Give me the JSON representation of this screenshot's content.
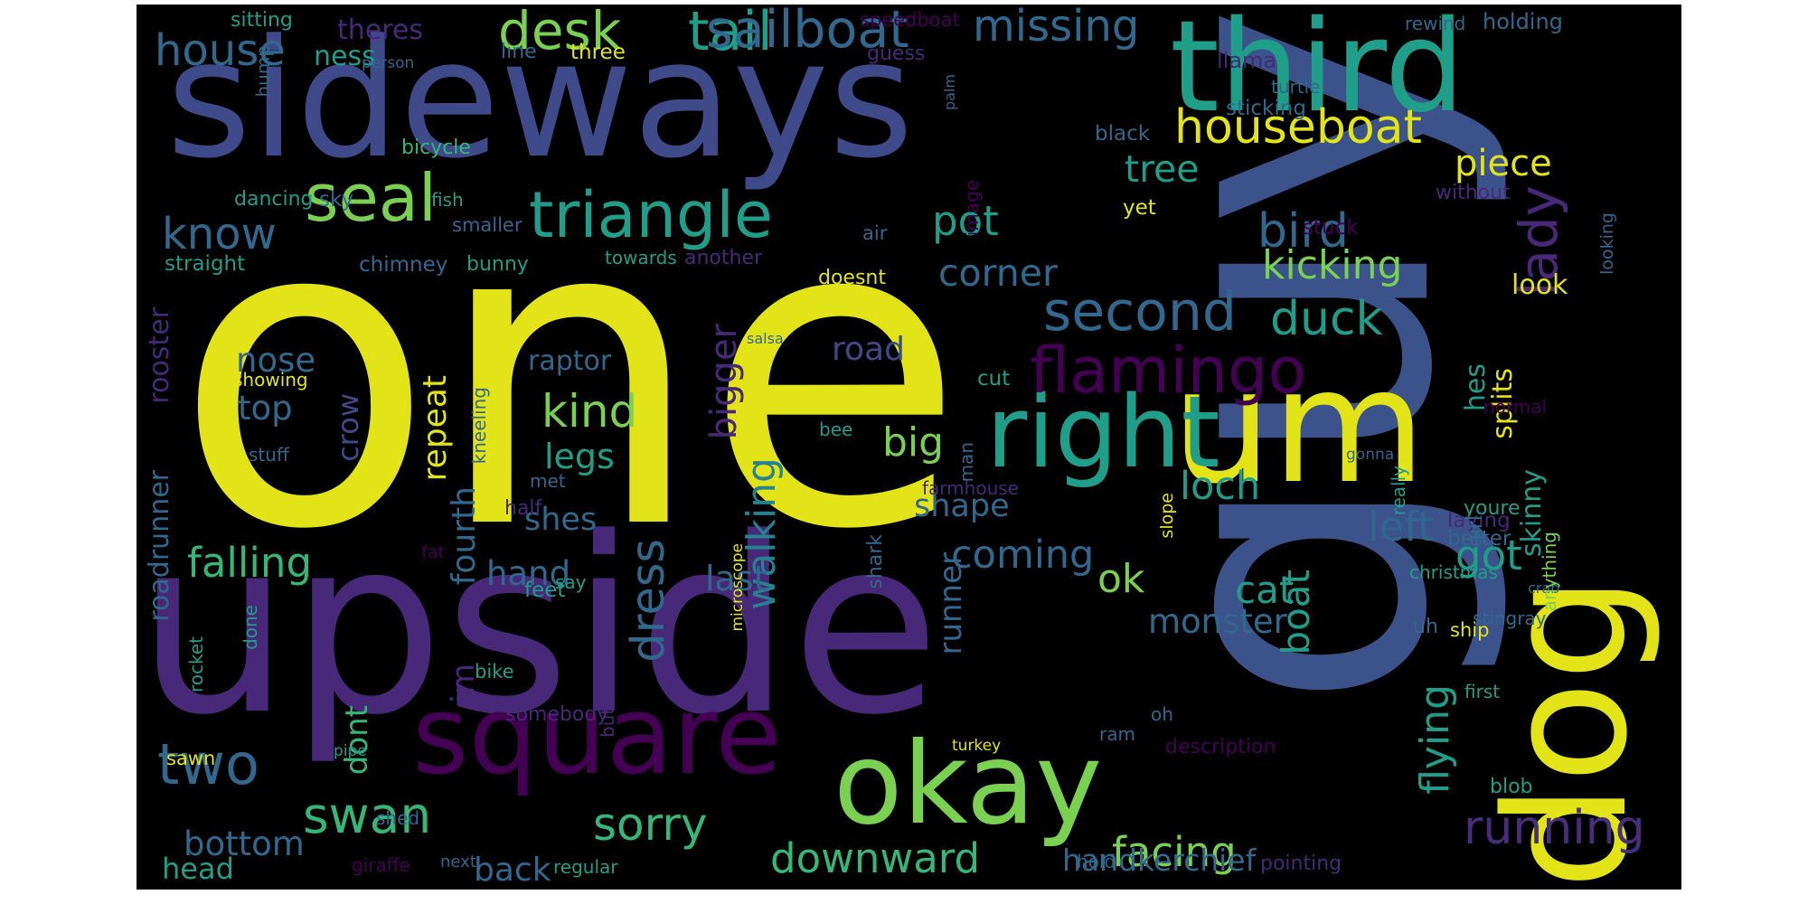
{
  "palette": {
    "yellow": "#e3e418",
    "lime": "#7ad151",
    "green": "#35b779",
    "teal": "#1f9e89",
    "tealblue": "#26828e",
    "blue": "#31688e",
    "steel": "#3e4a89",
    "navy": "#3b528b",
    "purple": "#472d7b",
    "indigo": "#482878",
    "violet": "#440154",
    "background": "#000000"
  },
  "words": [
    {
      "text": "one",
      "color": "yellow"
    },
    {
      "text": "upside",
      "color": "indigo"
    },
    {
      "text": "sideways",
      "color": "steel"
    },
    {
      "text": "guy",
      "color": "navy"
    },
    {
      "text": "third",
      "color": "teal"
    },
    {
      "text": "um",
      "color": "yellow"
    },
    {
      "text": "dog",
      "color": "yellow"
    },
    {
      "text": "square",
      "color": "violet"
    },
    {
      "text": "okay",
      "color": "lime"
    },
    {
      "text": "right",
      "color": "teal"
    },
    {
      "text": "triangle",
      "color": "teal"
    },
    {
      "text": "flamingo",
      "color": "violet"
    },
    {
      "text": "seal",
      "color": "lime"
    },
    {
      "text": "two",
      "color": "blue"
    },
    {
      "text": "swan",
      "color": "green"
    },
    {
      "text": "tail",
      "color": "teal"
    },
    {
      "text": "desk",
      "color": "lime"
    },
    {
      "text": "sailboat",
      "color": "blue"
    },
    {
      "text": "missing",
      "color": "blue"
    },
    {
      "text": "house",
      "color": "blue"
    },
    {
      "text": "houseboat",
      "color": "yellow"
    },
    {
      "text": "second",
      "color": "blue"
    },
    {
      "text": "duck",
      "color": "teal"
    },
    {
      "text": "lady",
      "color": "indigo"
    },
    {
      "text": "bird",
      "color": "blue"
    },
    {
      "text": "know",
      "color": "blue"
    },
    {
      "text": "running",
      "color": "purple"
    },
    {
      "text": "downward",
      "color": "green"
    },
    {
      "text": "sorry",
      "color": "green"
    },
    {
      "text": "facing",
      "color": "lime"
    },
    {
      "text": "monster",
      "color": "blue"
    },
    {
      "text": "falling",
      "color": "green"
    },
    {
      "text": "kind",
      "color": "lime"
    },
    {
      "text": "pot",
      "color": "teal"
    },
    {
      "text": "big",
      "color": "lime"
    },
    {
      "text": "kicking",
      "color": "lime"
    },
    {
      "text": "corner",
      "color": "blue"
    },
    {
      "text": "tree",
      "color": "teal"
    },
    {
      "text": "piece",
      "color": "yellow"
    },
    {
      "text": "ok",
      "color": "lime"
    },
    {
      "text": "coming",
      "color": "blue"
    },
    {
      "text": "cat",
      "color": "teal"
    },
    {
      "text": "got",
      "color": "teal"
    },
    {
      "text": "left",
      "color": "blue"
    },
    {
      "text": "loch",
      "color": "teal"
    },
    {
      "text": "dress",
      "color": "blue"
    },
    {
      "text": "walking",
      "color": "tealblue"
    },
    {
      "text": "road",
      "color": "steel"
    },
    {
      "text": "nose",
      "color": "blue"
    },
    {
      "text": "top",
      "color": "blue"
    },
    {
      "text": "crow",
      "color": "steel"
    },
    {
      "text": "repeat",
      "color": "yellow"
    },
    {
      "text": "fourth",
      "color": "blue"
    },
    {
      "text": "legs",
      "color": "teal"
    },
    {
      "text": "shes",
      "color": "blue"
    },
    {
      "text": "hand",
      "color": "blue"
    },
    {
      "text": "last",
      "color": "blue"
    },
    {
      "text": "bigger",
      "color": "indigo"
    },
    {
      "text": "shape",
      "color": "blue"
    },
    {
      "text": "raptor",
      "color": "blue"
    },
    {
      "text": "look",
      "color": "yellow"
    },
    {
      "text": "hes",
      "color": "teal"
    },
    {
      "text": "skinny",
      "color": "teal"
    },
    {
      "text": "splits",
      "color": "yellow"
    },
    {
      "text": "flying",
      "color": "teal"
    },
    {
      "text": "boat",
      "color": "teal"
    },
    {
      "text": "back",
      "color": "blue"
    },
    {
      "text": "bottom",
      "color": "blue"
    },
    {
      "text": "head",
      "color": "teal"
    },
    {
      "text": "handkerchief",
      "color": "blue"
    },
    {
      "text": "im",
      "color": "indigo"
    },
    {
      "text": "dont",
      "color": "green"
    },
    {
      "text": "runner",
      "color": "blue"
    },
    {
      "text": "roadrunner",
      "color": "blue"
    },
    {
      "text": "rooster",
      "color": "indigo"
    },
    {
      "text": "theres",
      "color": "indigo"
    },
    {
      "text": "ness",
      "color": "teal"
    },
    {
      "text": "sitting",
      "color": "teal"
    },
    {
      "text": "line",
      "color": "blue"
    },
    {
      "text": "three",
      "color": "yellow"
    },
    {
      "text": "speedboat",
      "color": "violet"
    },
    {
      "text": "guess",
      "color": "indigo"
    },
    {
      "text": "llama",
      "color": "indigo"
    },
    {
      "text": "rewind",
      "color": "blue"
    },
    {
      "text": "holding",
      "color": "blue"
    },
    {
      "text": "turtle",
      "color": "blue"
    },
    {
      "text": "sticking",
      "color": "blue"
    },
    {
      "text": "black",
      "color": "blue"
    },
    {
      "text": "person",
      "color": "blue"
    },
    {
      "text": "bicycle",
      "color": "green"
    },
    {
      "text": "hump",
      "color": "blue"
    },
    {
      "text": "palm",
      "color": "blue"
    },
    {
      "text": "dancing",
      "color": "teal"
    },
    {
      "text": "sky",
      "color": "blue"
    },
    {
      "text": "fish",
      "color": "teal"
    },
    {
      "text": "smaller",
      "color": "blue"
    },
    {
      "text": "air",
      "color": "blue"
    },
    {
      "text": "image",
      "color": "violet"
    },
    {
      "text": "yet",
      "color": "yellow"
    },
    {
      "text": "without",
      "color": "indigo"
    },
    {
      "text": "stuck",
      "color": "violet"
    },
    {
      "text": "looking",
      "color": "blue"
    },
    {
      "text": "straight",
      "color": "teal"
    },
    {
      "text": "chimney",
      "color": "blue"
    },
    {
      "text": "bunny",
      "color": "teal"
    },
    {
      "text": "towards",
      "color": "teal"
    },
    {
      "text": "another",
      "color": "indigo"
    },
    {
      "text": "doesnt",
      "color": "yellow"
    },
    {
      "text": "salsa",
      "color": "blue"
    },
    {
      "text": "showing",
      "color": "yellow"
    },
    {
      "text": "cut",
      "color": "teal"
    },
    {
      "text": "normal",
      "color": "violet"
    },
    {
      "text": "stuff",
      "color": "blue"
    },
    {
      "text": "kneeling",
      "color": "blue"
    },
    {
      "text": "bee",
      "color": "teal"
    },
    {
      "text": "man",
      "color": "blue"
    },
    {
      "text": "farmhouse",
      "color": "indigo"
    },
    {
      "text": "gonna",
      "color": "blue"
    },
    {
      "text": "met",
      "color": "blue"
    },
    {
      "text": "half",
      "color": "indigo"
    },
    {
      "text": "slope",
      "color": "yellow"
    },
    {
      "text": "youre",
      "color": "teal"
    },
    {
      "text": "really",
      "color": "teal"
    },
    {
      "text": "laying",
      "color": "indigo"
    },
    {
      "text": "microscope",
      "color": "yellow"
    },
    {
      "text": "crab",
      "color": "blue"
    },
    {
      "text": "christmas",
      "color": "teal"
    },
    {
      "text": "girl",
      "color": "blue"
    },
    {
      "text": "anything",
      "color": "lime"
    },
    {
      "text": "shark",
      "color": "blue"
    },
    {
      "text": "fat",
      "color": "violet"
    },
    {
      "text": "better",
      "color": "blue"
    },
    {
      "text": "feet",
      "color": "teal"
    },
    {
      "text": "uh",
      "color": "blue"
    },
    {
      "text": "ship",
      "color": "yellow"
    },
    {
      "text": "stingray",
      "color": "blue"
    },
    {
      "text": "rocket",
      "color": "teal"
    },
    {
      "text": "done",
      "color": "teal"
    },
    {
      "text": "say",
      "color": "teal"
    },
    {
      "text": "bike",
      "color": "teal"
    },
    {
      "text": "somebody",
      "color": "indigo"
    },
    {
      "text": "button",
      "color": "indigo"
    },
    {
      "text": "ram",
      "color": "blue"
    },
    {
      "text": "oh",
      "color": "blue"
    },
    {
      "text": "first",
      "color": "teal"
    },
    {
      "text": "sawn",
      "color": "yellow"
    },
    {
      "text": "pipe",
      "color": "teal"
    },
    {
      "text": "description",
      "color": "violet"
    },
    {
      "text": "turkey",
      "color": "yellow"
    },
    {
      "text": "shed",
      "color": "blue"
    },
    {
      "text": "blob",
      "color": "teal"
    },
    {
      "text": "giraffe",
      "color": "violet"
    },
    {
      "text": "next",
      "color": "blue"
    },
    {
      "text": "regular",
      "color": "teal"
    },
    {
      "text": "hold",
      "color": "blue"
    },
    {
      "text": "pointing",
      "color": "indigo"
    }
  ]
}
